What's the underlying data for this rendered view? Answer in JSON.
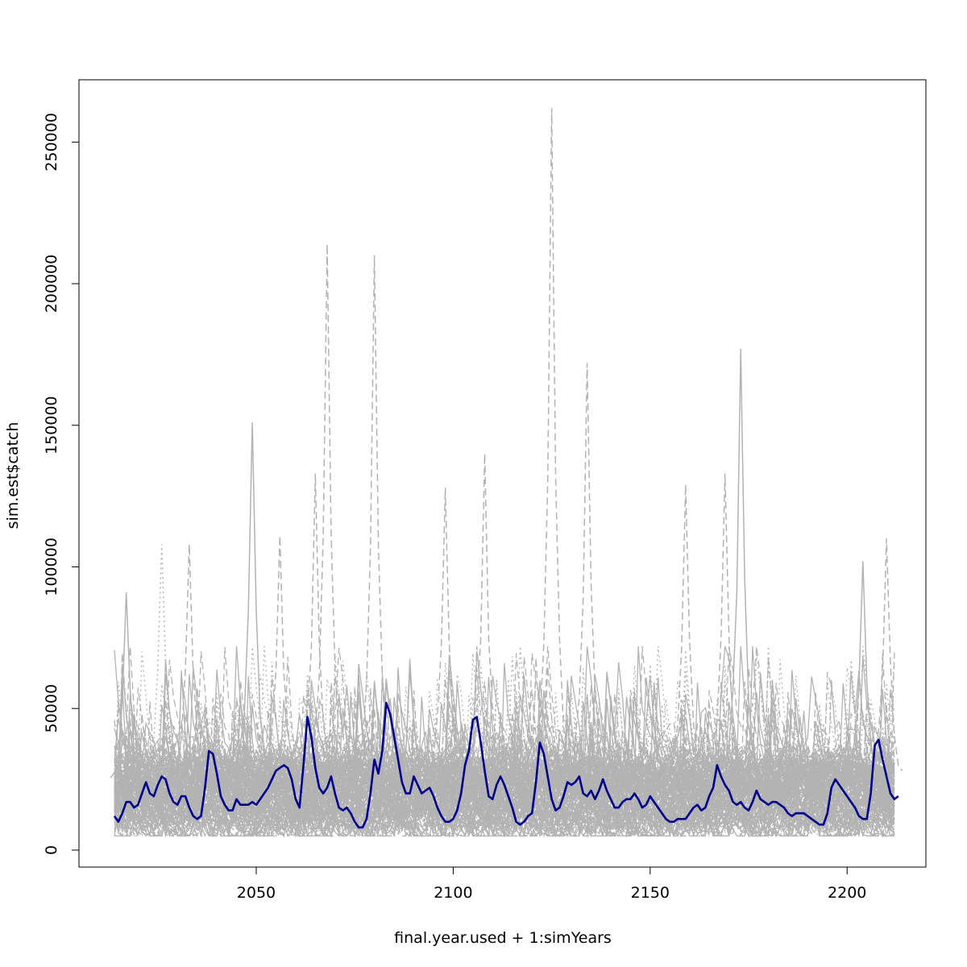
{
  "chart_data": {
    "type": "line",
    "title": "",
    "xlabel": "final.year.used + 1:simYears",
    "ylabel": "sim.est$catch",
    "xlim": [
      2005,
      2220
    ],
    "ylim": [
      -6000,
      272000
    ],
    "x_range": [
      2014,
      2212
    ],
    "x_ticks": [
      2050,
      2100,
      2150,
      2200
    ],
    "y_ticks": [
      0,
      50000,
      100000,
      150000,
      200000,
      250000
    ],
    "y_tick_labels": [
      "0",
      "50000",
      "100000",
      "150000",
      "200000",
      "250000"
    ],
    "grid": false,
    "legend": "none",
    "colors": {
      "background_series": "#b3b3b3",
      "highlight_series": "#00008b",
      "axis": "#000000"
    },
    "background_series_note": "hundreds of simulated trajectories (solid, dashed and dotted grey lines) between about 5000 and 60000 with occasional spikes",
    "background_peaks": [
      {
        "x": 2017,
        "y": 91000,
        "style": "solid"
      },
      {
        "x": 2026,
        "y": 108000,
        "style": "dotted"
      },
      {
        "x": 2033,
        "y": 108000,
        "style": "dashed"
      },
      {
        "x": 2049,
        "y": 151000,
        "style": "solid"
      },
      {
        "x": 2056,
        "y": 111000,
        "style": "dashed"
      },
      {
        "x": 2065,
        "y": 133000,
        "style": "dashed"
      },
      {
        "x": 2068,
        "y": 214000,
        "style": "dashed"
      },
      {
        "x": 2080,
        "y": 210000,
        "style": "dashed"
      },
      {
        "x": 2098,
        "y": 128000,
        "style": "dashed"
      },
      {
        "x": 2108,
        "y": 140000,
        "style": "dashed"
      },
      {
        "x": 2125,
        "y": 262000,
        "style": "dashed"
      },
      {
        "x": 2134,
        "y": 172000,
        "style": "dashed"
      },
      {
        "x": 2159,
        "y": 129000,
        "style": "dashed"
      },
      {
        "x": 2169,
        "y": 133000,
        "style": "dashed"
      },
      {
        "x": 2173,
        "y": 177000,
        "style": "solid"
      },
      {
        "x": 2204,
        "y": 102000,
        "style": "solid"
      },
      {
        "x": 2210,
        "y": 110000,
        "style": "dashed"
      }
    ],
    "series": [
      {
        "x_start": 2014,
        "style": "solid",
        "color": "#00008b",
        "values": [
          12000,
          10000,
          13000,
          17000,
          17000,
          15000,
          16000,
          20000,
          24000,
          20000,
          19000,
          23000,
          26000,
          25000,
          20000,
          17000,
          16000,
          19000,
          19000,
          15000,
          12000,
          11000,
          12000,
          22000,
          35000,
          34000,
          27000,
          19000,
          16000,
          14000,
          14000,
          18000,
          16000,
          16000,
          16000,
          17000,
          16000,
          18000,
          20000,
          22000,
          25000,
          28000,
          29000,
          30000,
          29000,
          25000,
          18000,
          15000,
          30000,
          47000,
          40000,
          29000,
          22000,
          20000,
          22000,
          26000,
          20000,
          15000,
          14000,
          15000,
          13000,
          10000,
          8000,
          8000,
          11000,
          20000,
          32000,
          27000,
          35000,
          52000,
          48000,
          40000,
          32000,
          24000,
          20000,
          20000,
          26000,
          23000,
          20000,
          21000,
          22000,
          19000,
          15000,
          12000,
          10000,
          10000,
          11000,
          14000,
          20000,
          30000,
          35000,
          46000,
          47000,
          38000,
          28000,
          19000,
          18000,
          23000,
          26000,
          23000,
          19000,
          15000,
          10000,
          9000,
          10000,
          12000,
          13000,
          24000,
          38000,
          34000,
          26000,
          18000,
          14000,
          15000,
          19000,
          24000,
          23000,
          24000,
          26000,
          20000,
          19000,
          21000,
          18000,
          21000,
          25000,
          21000,
          18000,
          15000,
          15000,
          17000,
          18000,
          18000,
          20000,
          18000,
          15000,
          16000,
          19000,
          17000,
          15000,
          13000,
          11000,
          10000,
          10000,
          11000,
          11000,
          11000,
          13000,
          15000,
          16000,
          14000,
          15000,
          19000,
          22000,
          30000,
          26000,
          23000,
          21000,
          17000,
          16000,
          17000,
          15000,
          14000,
          17000,
          21000,
          18000,
          17000,
          16000,
          17000,
          17000,
          16000,
          15000,
          13000,
          12000,
          13000,
          13000,
          13000,
          12000,
          11000,
          10000,
          9000,
          9000,
          13000,
          22000,
          25000,
          23000,
          21000,
          19000,
          17000,
          15000,
          12000,
          11000,
          11000,
          20000,
          37000,
          39000,
          32000,
          26000,
          20000,
          18000,
          19000
        ]
      }
    ]
  }
}
